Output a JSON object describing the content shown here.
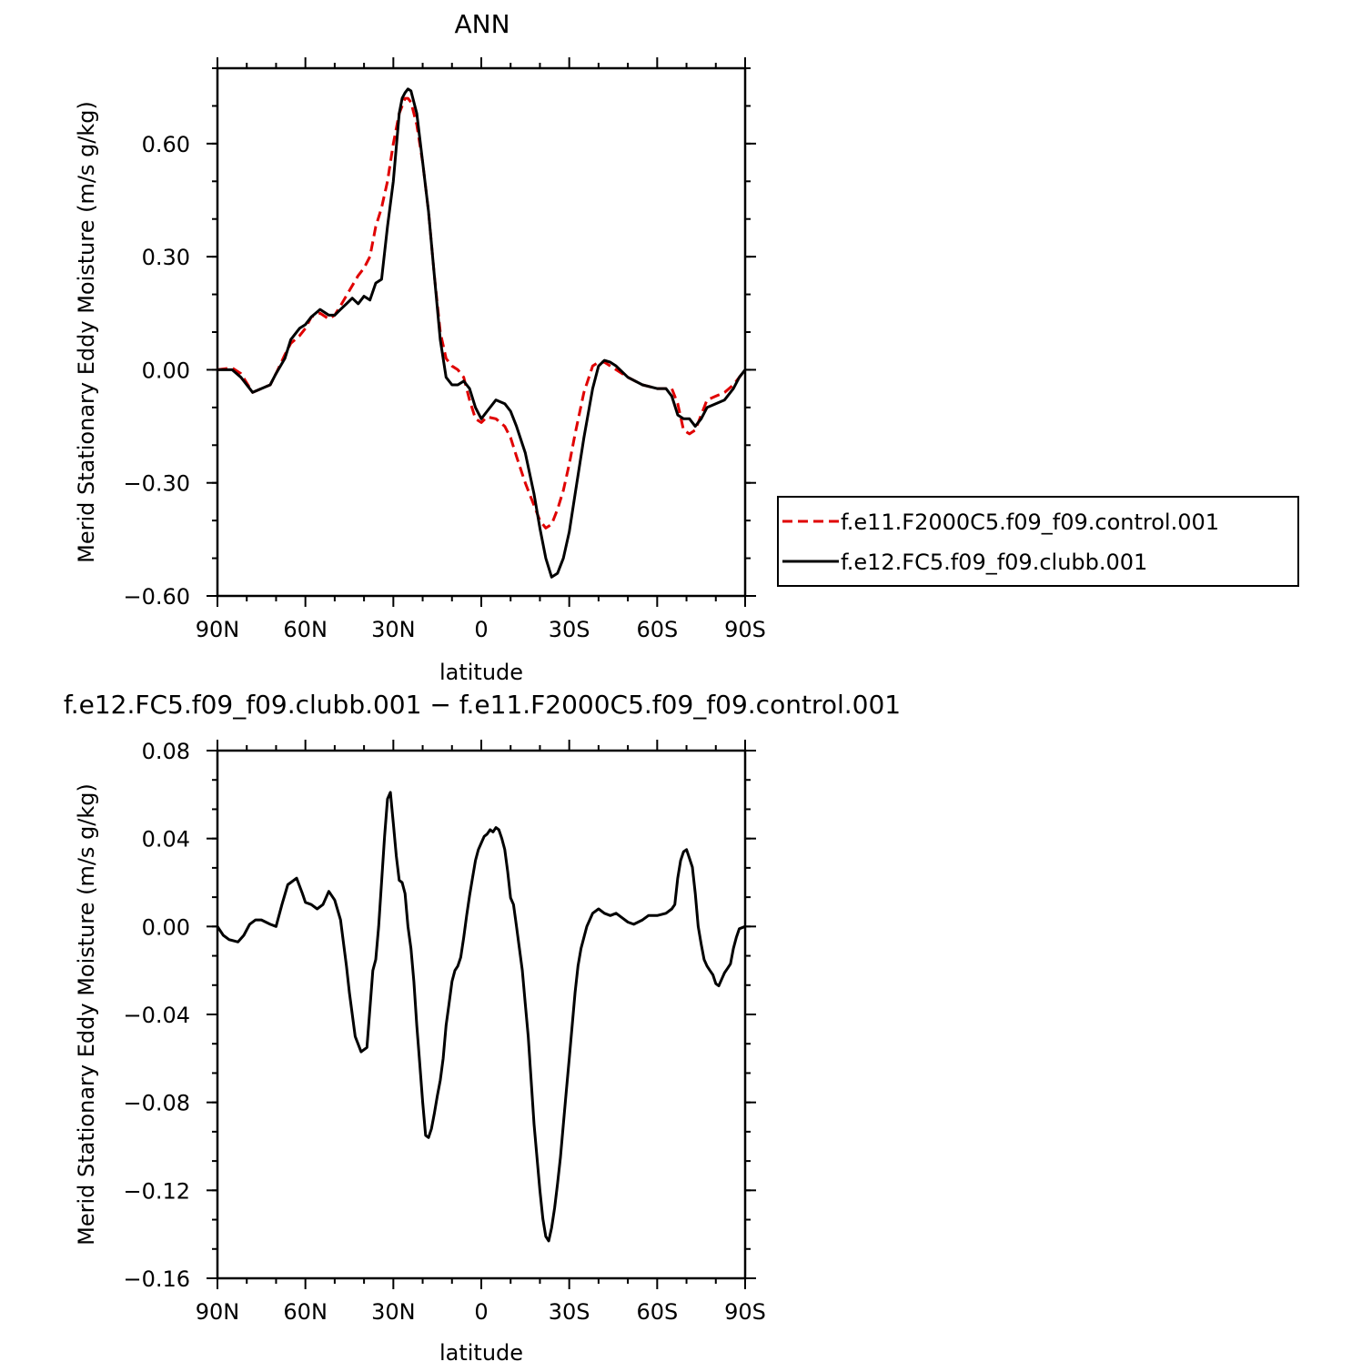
{
  "chart_data": [
    {
      "type": "line",
      "title": "ANN",
      "xlabel": "latitude",
      "ylabel": "Merid Stationary Eddy Moisture (m/s g/kg)",
      "x_tick_labels": [
        "90N",
        "60N",
        "30N",
        "0",
        "30S",
        "60S",
        "90S"
      ],
      "x_tick_values": [
        90,
        60,
        30,
        0,
        -30,
        -60,
        -90
      ],
      "xlim": [
        90,
        -90
      ],
      "ylim": [
        -0.6,
        0.8
      ],
      "y_tick_labels": [
        "0.60",
        "0.30",
        "0.00",
        "−0.30",
        "−0.60"
      ],
      "y_tick_values": [
        0.6,
        0.3,
        0.0,
        -0.3,
        -0.6
      ],
      "legend_position": "right",
      "series": [
        {
          "name": "f.e11.F2000C5.f09_f09.control.001",
          "color": "#e00000",
          "dash": "dashed",
          "x": [
            90,
            85,
            82,
            78,
            75,
            72,
            70,
            67,
            65,
            62,
            60,
            58,
            55,
            52,
            50,
            48,
            45,
            42,
            40,
            38,
            36,
            34,
            32,
            30,
            28,
            26,
            25,
            24,
            22,
            20,
            18,
            16,
            14,
            12,
            10,
            8,
            6,
            4,
            2,
            0,
            -2,
            -5,
            -8,
            -10,
            -12,
            -15,
            -18,
            -20,
            -22,
            -24,
            -26,
            -28,
            -30,
            -32,
            -35,
            -38,
            -40,
            -42,
            -44,
            -46,
            -50,
            -55,
            -60,
            -63,
            -65,
            -67,
            -69,
            -71,
            -73,
            -75,
            -77,
            -80,
            -83,
            -86,
            -88,
            -90
          ],
          "y": [
            0.0,
            0.005,
            -0.01,
            -0.06,
            -0.05,
            -0.04,
            -0.01,
            0.04,
            0.07,
            0.09,
            0.11,
            0.14,
            0.15,
            0.135,
            0.145,
            0.17,
            0.21,
            0.25,
            0.27,
            0.3,
            0.38,
            0.43,
            0.5,
            0.6,
            0.68,
            0.72,
            0.72,
            0.71,
            0.65,
            0.55,
            0.42,
            0.25,
            0.1,
            0.03,
            0.01,
            0.0,
            -0.02,
            -0.08,
            -0.13,
            -0.14,
            -0.125,
            -0.13,
            -0.15,
            -0.18,
            -0.23,
            -0.3,
            -0.36,
            -0.4,
            -0.42,
            -0.41,
            -0.37,
            -0.32,
            -0.25,
            -0.17,
            -0.06,
            0.01,
            0.02,
            0.02,
            0.01,
            0.0,
            -0.02,
            -0.04,
            -0.05,
            -0.05,
            -0.05,
            -0.09,
            -0.16,
            -0.17,
            -0.16,
            -0.12,
            -0.08,
            -0.07,
            -0.06,
            -0.04,
            -0.02,
            0.0
          ]
        },
        {
          "name": "f.e12.FC5.f09_f09.clubb.001",
          "color": "#000000",
          "dash": "solid",
          "x": [
            90,
            85,
            82,
            78,
            75,
            72,
            70,
            67,
            65,
            62,
            60,
            58,
            55,
            52,
            50,
            48,
            46,
            44,
            42,
            40,
            38,
            36,
            34,
            32,
            30,
            28,
            27,
            26,
            25,
            24,
            22,
            20,
            18,
            16,
            14,
            12,
            10,
            8,
            6,
            4,
            2,
            0,
            -2,
            -5,
            -8,
            -10,
            -12,
            -15,
            -18,
            -20,
            -22,
            -24,
            -26,
            -28,
            -30,
            -32,
            -35,
            -38,
            -40,
            -42,
            -44,
            -46,
            -50,
            -55,
            -60,
            -63,
            -65,
            -67,
            -69,
            -71,
            -73,
            -75,
            -77,
            -80,
            -83,
            -86,
            -88,
            -90
          ],
          "y": [
            0.0,
            0.0,
            -0.02,
            -0.06,
            -0.05,
            -0.04,
            -0.01,
            0.03,
            0.08,
            0.11,
            0.12,
            0.14,
            0.16,
            0.145,
            0.145,
            0.16,
            0.175,
            0.19,
            0.175,
            0.195,
            0.185,
            0.23,
            0.24,
            0.38,
            0.5,
            0.68,
            0.72,
            0.735,
            0.745,
            0.74,
            0.68,
            0.55,
            0.42,
            0.25,
            0.08,
            -0.02,
            -0.04,
            -0.04,
            -0.03,
            -0.05,
            -0.1,
            -0.13,
            -0.11,
            -0.08,
            -0.09,
            -0.11,
            -0.15,
            -0.22,
            -0.33,
            -0.42,
            -0.5,
            -0.55,
            -0.54,
            -0.5,
            -0.43,
            -0.33,
            -0.18,
            -0.05,
            0.01,
            0.025,
            0.02,
            0.01,
            -0.02,
            -0.04,
            -0.05,
            -0.05,
            -0.07,
            -0.12,
            -0.13,
            -0.13,
            -0.15,
            -0.13,
            -0.1,
            -0.09,
            -0.08,
            -0.05,
            -0.02,
            0.0
          ]
        }
      ]
    },
    {
      "type": "line",
      "title": "f.e12.FC5.f09_f09.clubb.001  −  f.e11.F2000C5.f09_f09.control.001",
      "xlabel": "latitude",
      "ylabel": "Merid Stationary Eddy Moisture (m/s g/kg)",
      "x_tick_labels": [
        "90N",
        "60N",
        "30N",
        "0",
        "30S",
        "60S",
        "90S"
      ],
      "x_tick_values": [
        90,
        60,
        30,
        0,
        -30,
        -60,
        -90
      ],
      "xlim": [
        90,
        -90
      ],
      "ylim": [
        -0.16,
        0.08
      ],
      "y_tick_labels": [
        "0.08",
        "0.04",
        "0.00",
        "−0.04",
        "−0.08",
        "−0.12",
        "−0.16"
      ],
      "y_tick_values": [
        0.08,
        0.04,
        0.0,
        -0.04,
        -0.08,
        -0.12,
        -0.16
      ],
      "series": [
        {
          "color": "#000000",
          "dash": "solid",
          "x": [
            90,
            88,
            86,
            83,
            81,
            79,
            77,
            75,
            72,
            70,
            68,
            66,
            65,
            63,
            61,
            60,
            58,
            56,
            54,
            52,
            50,
            48,
            46,
            45,
            43,
            41,
            39,
            37,
            36,
            35,
            33,
            32,
            31,
            30,
            29,
            28,
            27,
            26,
            25,
            24,
            23,
            22,
            21,
            20,
            19,
            18,
            17,
            16,
            15,
            14,
            13,
            12,
            11,
            10,
            9,
            8,
            7,
            6,
            5,
            4,
            3,
            2,
            1,
            0,
            -1,
            -2,
            -3,
            -4,
            -5,
            -6,
            -7,
            -8,
            -9,
            -10,
            -11,
            -12,
            -13,
            -14,
            -15,
            -16,
            -17,
            -18,
            -19,
            -20,
            -21,
            -22,
            -23,
            -24,
            -25,
            -26,
            -27,
            -28,
            -29,
            -30,
            -31,
            -32,
            -33,
            -34,
            -35,
            -36,
            -38,
            -40,
            -42,
            -44,
            -46,
            -48,
            -50,
            -52,
            -55,
            -57,
            -60,
            -63,
            -65,
            -66,
            -67,
            -68,
            -69,
            -70,
            -71,
            -72,
            -73,
            -74,
            -75,
            -76,
            -77,
            -78,
            -79,
            -80,
            -81,
            -82,
            -83,
            -84,
            -85,
            -86,
            -87,
            -88,
            -90
          ],
          "y": [
            0.0,
            -0.004,
            -0.006,
            -0.007,
            -0.004,
            0.001,
            0.003,
            0.003,
            0.001,
            0.0,
            0.01,
            0.019,
            0.02,
            0.022,
            0.015,
            0.011,
            0.01,
            0.008,
            0.01,
            0.016,
            0.012,
            0.003,
            -0.018,
            -0.03,
            -0.05,
            -0.057,
            -0.055,
            -0.02,
            -0.015,
            0.0,
            0.041,
            0.058,
            0.061,
            0.047,
            0.032,
            0.021,
            0.02,
            0.015,
            0.0,
            -0.01,
            -0.025,
            -0.045,
            -0.062,
            -0.08,
            -0.095,
            -0.096,
            -0.092,
            -0.085,
            -0.077,
            -0.07,
            -0.06,
            -0.045,
            -0.035,
            -0.025,
            -0.02,
            -0.018,
            -0.014,
            -0.005,
            0.005,
            0.014,
            0.022,
            0.03,
            0.035,
            0.038,
            0.041,
            0.042,
            0.044,
            0.043,
            0.045,
            0.044,
            0.04,
            0.035,
            0.025,
            0.013,
            0.01,
            0.0,
            -0.01,
            -0.02,
            -0.035,
            -0.05,
            -0.07,
            -0.09,
            -0.105,
            -0.12,
            -0.133,
            -0.141,
            -0.143,
            -0.137,
            -0.128,
            -0.117,
            -0.105,
            -0.09,
            -0.075,
            -0.06,
            -0.045,
            -0.03,
            -0.018,
            -0.01,
            -0.005,
            0.0,
            0.006,
            0.008,
            0.006,
            0.005,
            0.006,
            0.004,
            0.002,
            0.001,
            0.003,
            0.005,
            0.005,
            0.006,
            0.008,
            0.01,
            0.022,
            0.03,
            0.034,
            0.035,
            0.031,
            0.027,
            0.015,
            0.0,
            -0.008,
            -0.015,
            -0.018,
            -0.02,
            -0.022,
            -0.026,
            -0.027,
            -0.024,
            -0.021,
            -0.019,
            -0.017,
            -0.01,
            -0.005,
            -0.001,
            0.0
          ]
        }
      ]
    }
  ]
}
